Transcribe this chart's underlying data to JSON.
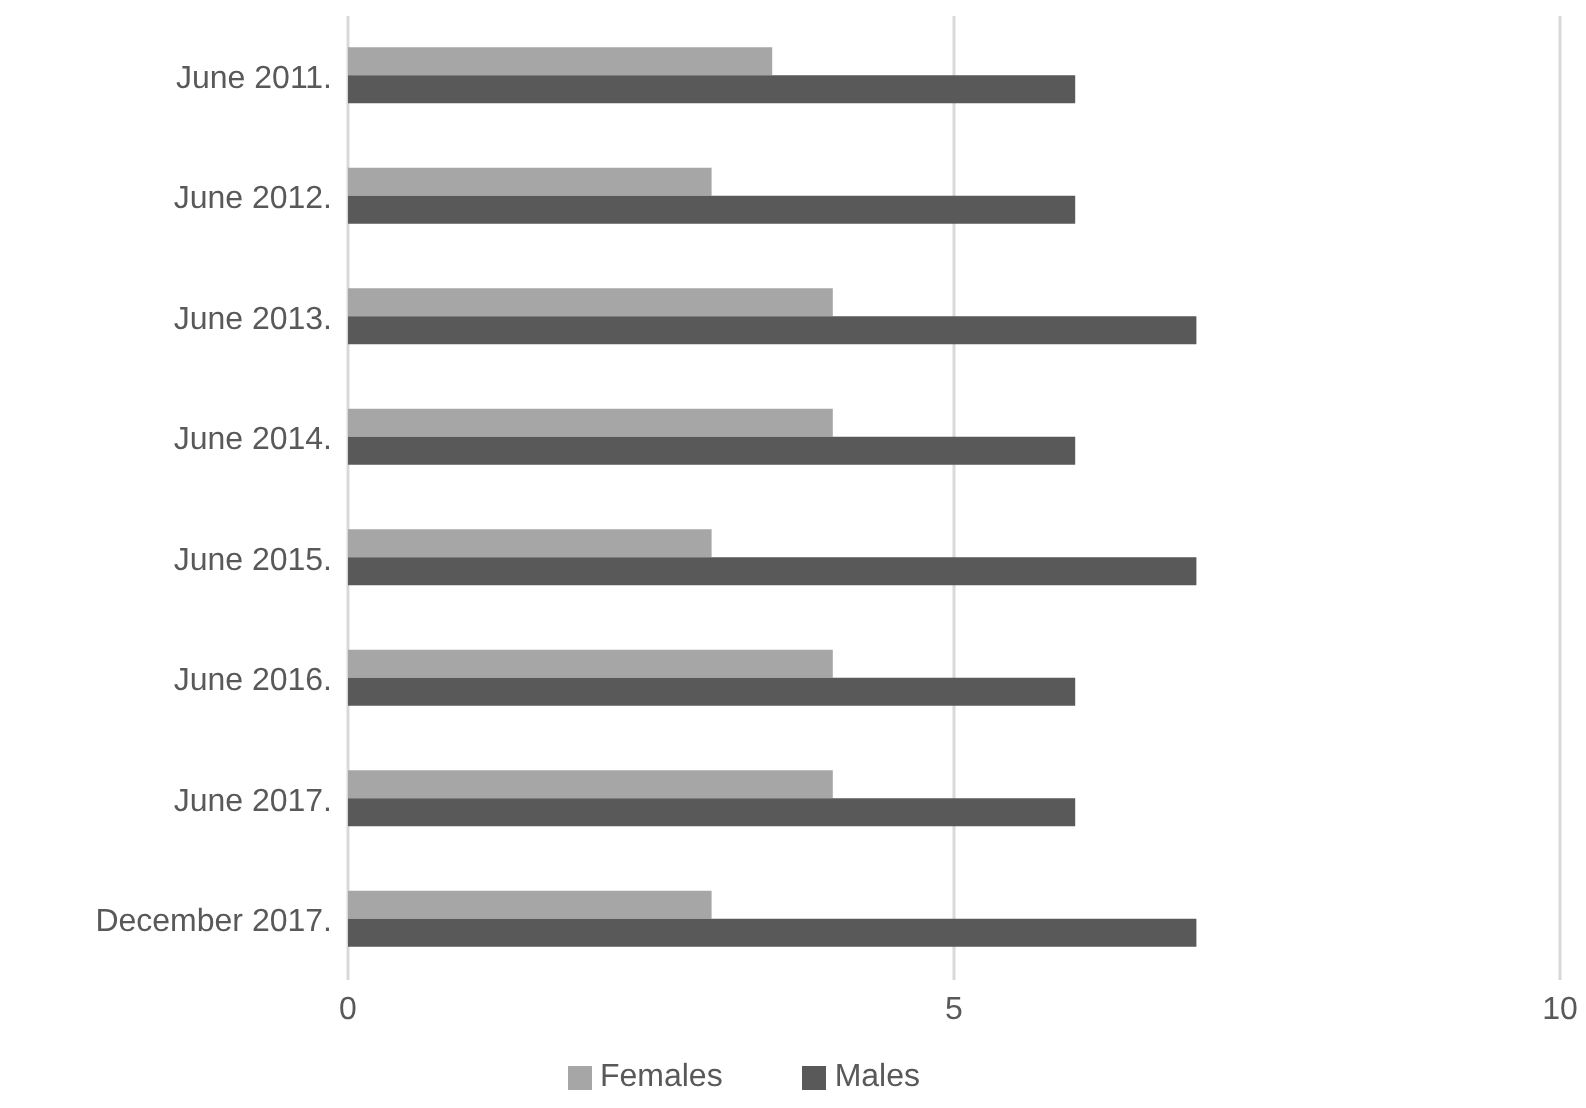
{
  "chart_data": {
    "type": "bar",
    "orientation": "horizontal",
    "categories": [
      "June 2011.",
      "June 2012.",
      "June 2013.",
      "June 2014.",
      "June 2015.",
      "June 2016.",
      "June 2017.",
      "December 2017."
    ],
    "series": [
      {
        "name": "Females",
        "color": "#a6a6a6",
        "values": [
          3.5,
          3,
          4,
          4,
          3,
          4,
          4,
          3
        ]
      },
      {
        "name": "Males",
        "color": "#595959",
        "values": [
          6,
          6,
          7,
          6,
          7,
          6,
          6,
          7
        ]
      }
    ],
    "xlim": [
      0,
      10
    ],
    "xticks": [
      0,
      5,
      10
    ],
    "grid": "x",
    "legend": "bottom"
  }
}
